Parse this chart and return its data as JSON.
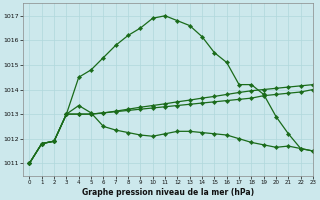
{
  "title": "Graphe pression niveau de la mer (hPa)",
  "bg_color": "#cce8ec",
  "grid_color": "#b0d8dc",
  "line_color": "#1a6b1a",
  "ylim": [
    1010.5,
    1017.5
  ],
  "xlim": [
    -0.5,
    23
  ],
  "yticks": [
    1011,
    1012,
    1013,
    1014,
    1015,
    1016,
    1017
  ],
  "xticks": [
    0,
    1,
    2,
    3,
    4,
    5,
    6,
    7,
    8,
    9,
    10,
    11,
    12,
    13,
    14,
    15,
    16,
    17,
    18,
    19,
    20,
    21,
    22,
    23
  ],
  "series": [
    [
      1011.0,
      1011.8,
      1011.9,
      1013.0,
      1014.5,
      1014.8,
      1015.3,
      1015.8,
      1016.2,
      1016.5,
      1016.9,
      1017.0,
      1016.8,
      1016.6,
      1016.15,
      1015.5,
      1015.1,
      1014.2,
      1014.2,
      1013.8,
      1012.9,
      1012.2,
      1011.6,
      1011.5
    ],
    [
      1011.0,
      1011.8,
      1011.9,
      1013.0,
      1013.35,
      1013.05,
      1012.5,
      1012.35,
      1012.25,
      1012.15,
      1012.1,
      1012.2,
      1012.3,
      1012.3,
      1012.25,
      1012.2,
      1012.15,
      1012.0,
      1011.85,
      1011.75,
      1011.65,
      1011.7,
      1011.6,
      1011.5
    ],
    [
      1011.0,
      1011.8,
      1011.9,
      1013.0,
      1013.0,
      1013.0,
      1013.05,
      1013.1,
      1013.15,
      1013.2,
      1013.25,
      1013.3,
      1013.35,
      1013.4,
      1013.45,
      1013.5,
      1013.55,
      1013.6,
      1013.65,
      1013.75,
      1013.8,
      1013.85,
      1013.9,
      1014.0
    ],
    [
      1011.0,
      1011.8,
      1011.9,
      1013.0,
      1013.0,
      1013.0,
      1013.05,
      1013.12,
      1013.2,
      1013.28,
      1013.35,
      1013.42,
      1013.5,
      1013.57,
      1013.65,
      1013.72,
      1013.8,
      1013.88,
      1013.95,
      1014.0,
      1014.05,
      1014.1,
      1014.15,
      1014.2
    ]
  ]
}
